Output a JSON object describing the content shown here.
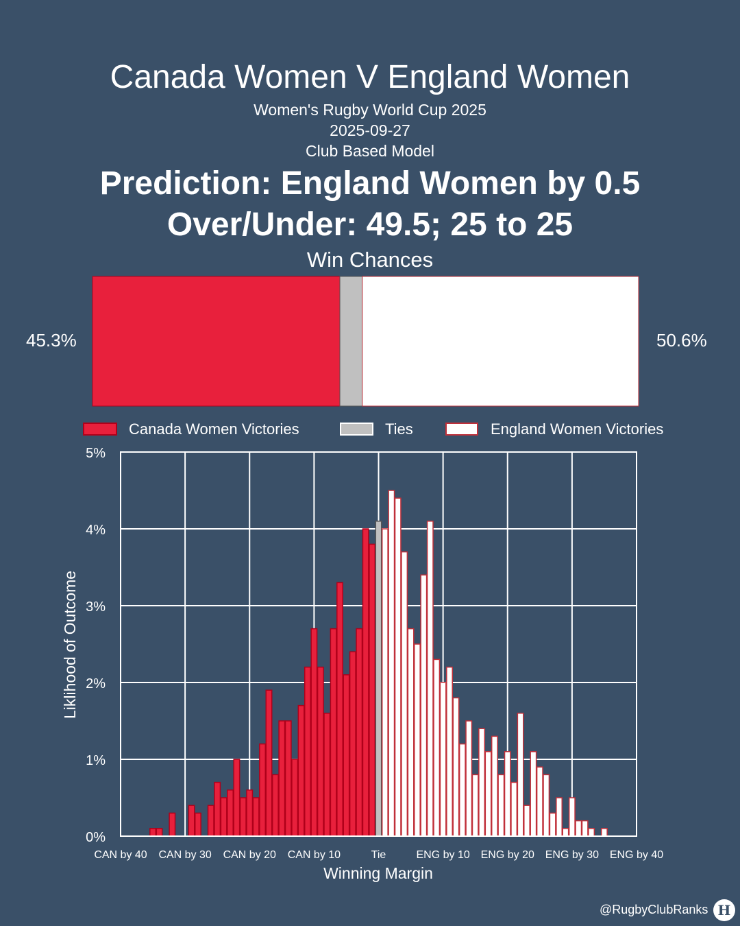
{
  "header": {
    "title": "Canada Women V England Women",
    "competition": "Women's Rugby World Cup 2025",
    "date": "2025-09-27",
    "model": "Club Based Model",
    "prediction": "Prediction: England Women by 0.5",
    "over_under": "Over/Under: 49.5; 25 to 25",
    "win_chances_label": "Win Chances"
  },
  "win_chances": {
    "left_label": "45.3%",
    "right_label": "50.6%",
    "canada": 45.3,
    "tie": 4.1,
    "england": 50.6
  },
  "legend": {
    "canada": "Canada Women Victories",
    "ties": "Ties",
    "england": "England Women Victories"
  },
  "colors": {
    "background": "#3a5068",
    "canada": "#e8203c",
    "canada_edge": "#b0001a",
    "tie": "#c0c0c0",
    "england": "#ffffff",
    "england_edge": "#c0303a",
    "grid": "#ffffff"
  },
  "chart_data": {
    "type": "bar",
    "xlabel": "Winning Margin",
    "ylabel": "Liklihood of Outcome",
    "xlim": [
      -40,
      40
    ],
    "ylim": [
      0,
      5
    ],
    "y_ticks": [
      "0%",
      "1%",
      "2%",
      "3%",
      "4%",
      "5%"
    ],
    "x_ticks": [
      {
        "value": -40,
        "label": "CAN by 40"
      },
      {
        "value": -30,
        "label": "CAN by 30"
      },
      {
        "value": -20,
        "label": "CAN by 20"
      },
      {
        "value": -10,
        "label": "CAN by 10"
      },
      {
        "value": 0,
        "label": "Tie"
      },
      {
        "value": 10,
        "label": "ENG by 10"
      },
      {
        "value": 20,
        "label": "ENG by 20"
      },
      {
        "value": 30,
        "label": "ENG by 30"
      },
      {
        "value": 40,
        "label": "ENG by 40"
      }
    ],
    "grid": true,
    "series": [
      {
        "name": "Canada Women Victories",
        "x": [
          -35,
          -34,
          -32,
          -29,
          -28,
          -26,
          -25,
          -24,
          -23,
          -22,
          -21,
          -20,
          -19,
          -18,
          -17,
          -16,
          -15,
          -14,
          -13,
          -12,
          -11,
          -10,
          -9,
          -8,
          -7,
          -6,
          -5,
          -4,
          -3,
          -2,
          -1
        ],
        "values": [
          0.1,
          0.1,
          0.3,
          0.4,
          0.3,
          0.4,
          0.7,
          0.5,
          0.6,
          1.0,
          0.5,
          0.6,
          0.5,
          1.2,
          1.9,
          0.8,
          1.5,
          1.5,
          1.0,
          1.7,
          2.2,
          2.7,
          2.2,
          1.6,
          2.7,
          3.3,
          2.1,
          2.4,
          2.7,
          4.0,
          3.8
        ]
      },
      {
        "name": "Ties",
        "x": [
          0
        ],
        "values": [
          4.1
        ]
      },
      {
        "name": "England Women Victories",
        "x": [
          1,
          2,
          3,
          4,
          5,
          6,
          7,
          8,
          9,
          10,
          11,
          12,
          13,
          14,
          15,
          16,
          17,
          18,
          19,
          20,
          21,
          22,
          23,
          24,
          25,
          26,
          27,
          28,
          29,
          30,
          31,
          32,
          33,
          35
        ],
        "values": [
          4.0,
          4.5,
          4.4,
          3.7,
          2.7,
          2.5,
          3.4,
          4.1,
          2.3,
          2.0,
          2.2,
          1.8,
          1.2,
          1.5,
          0.8,
          1.4,
          1.1,
          1.3,
          0.8,
          1.1,
          0.7,
          1.6,
          0.4,
          1.1,
          0.9,
          0.8,
          0.3,
          0.5,
          0.1,
          0.5,
          0.2,
          0.2,
          0.1,
          0.1
        ]
      }
    ]
  },
  "footer": {
    "credit": "@RugbyClubRanks",
    "logo_mark": "H"
  }
}
